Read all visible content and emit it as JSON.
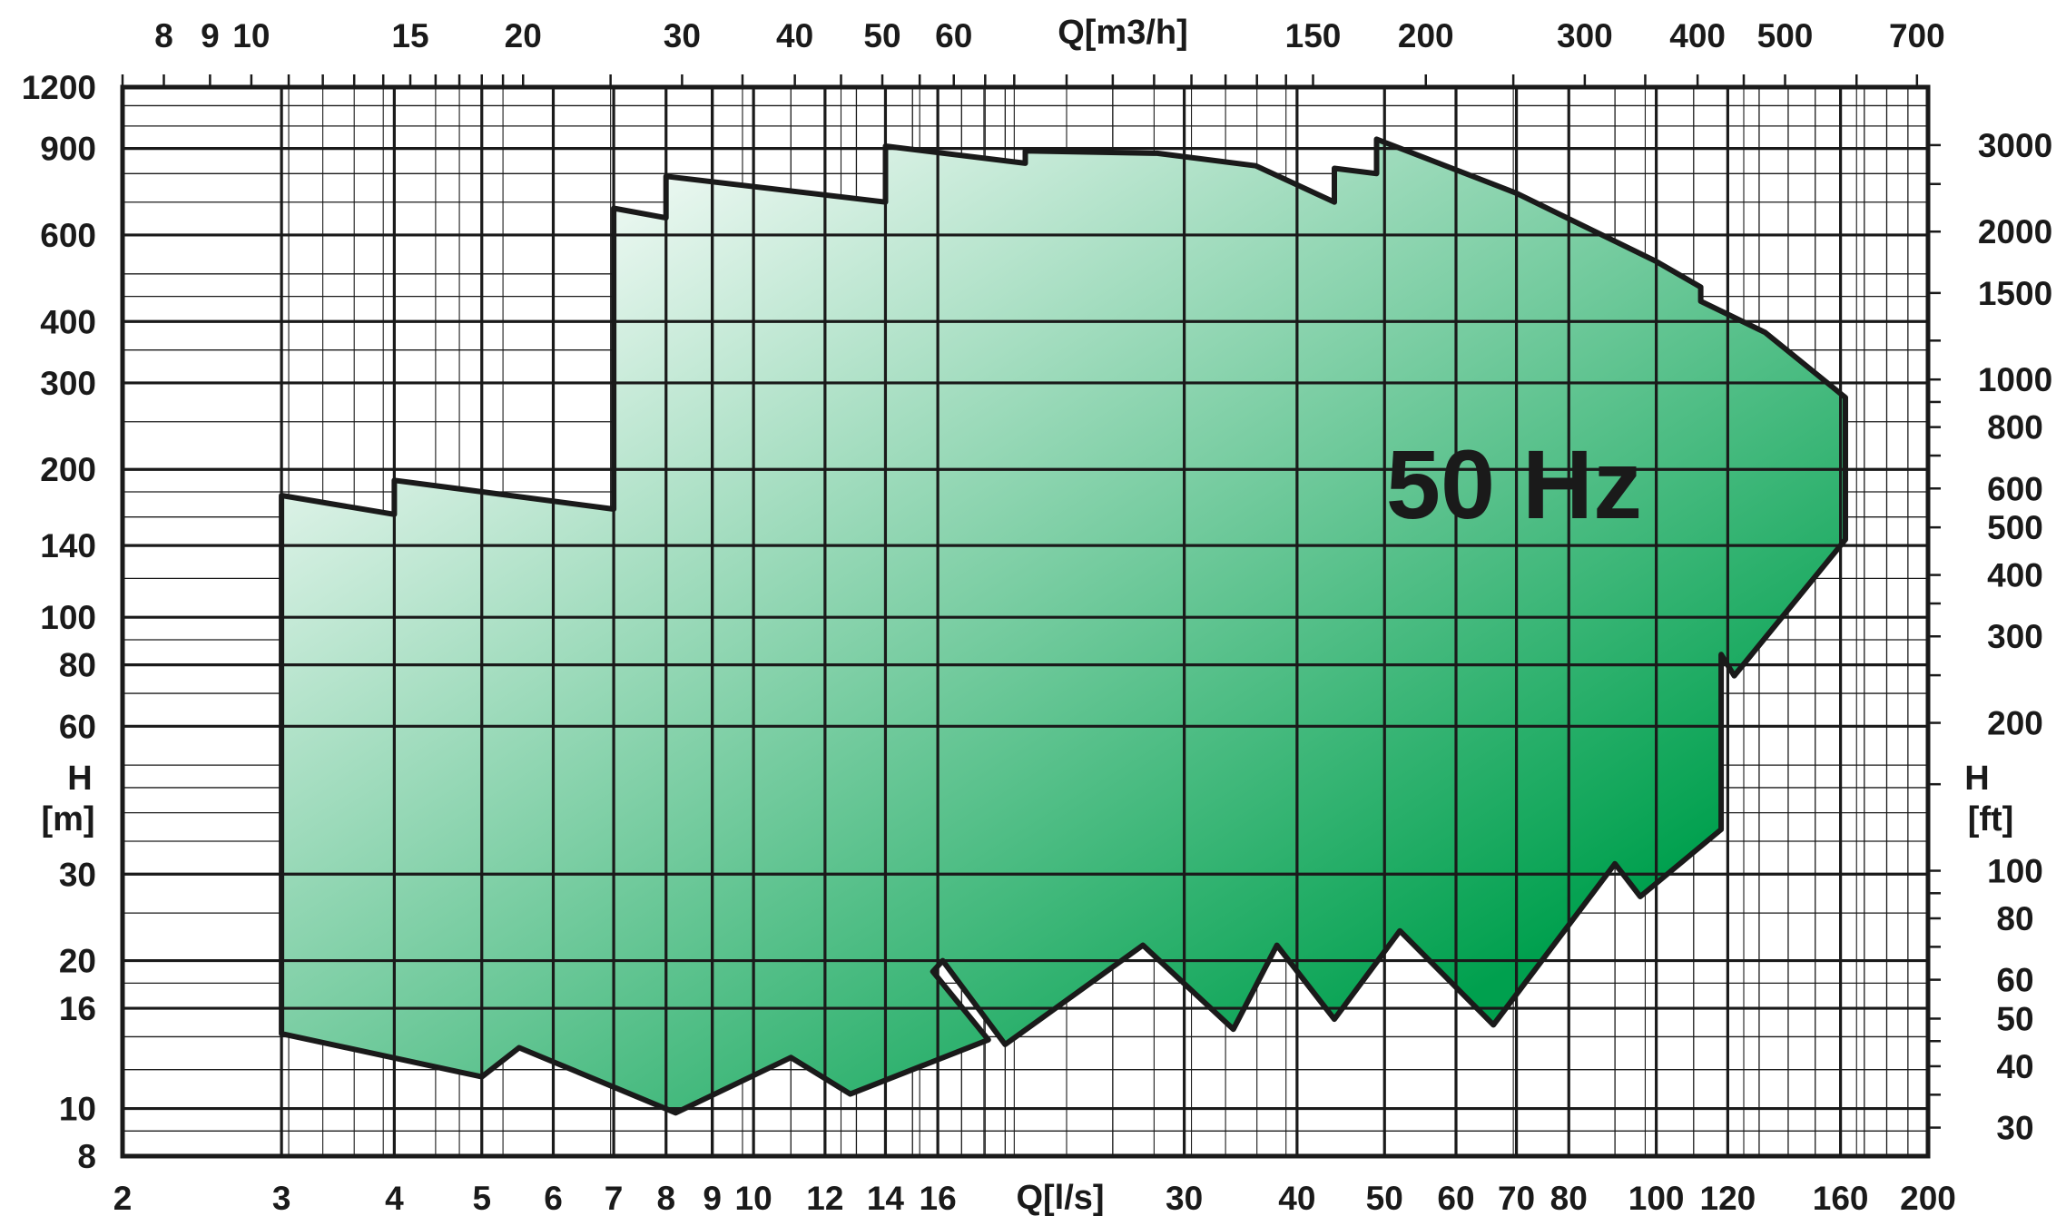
{
  "chart_data": {
    "type": "area",
    "title": "",
    "label": "50 Hz",
    "x_bottom": {
      "label": "Q[l/s]",
      "scale": "log",
      "range": [
        2,
        200
      ],
      "ticks": [
        "2",
        "3",
        "4",
        "5",
        "6",
        "7",
        "8",
        "9",
        "10",
        "12",
        "14",
        "16",
        "30",
        "40",
        "50",
        "60",
        "70",
        "80",
        "100",
        "120",
        "160",
        "200"
      ],
      "minor": [
        9,
        11,
        13,
        15,
        17,
        18,
        19,
        25,
        90,
        110,
        130,
        140,
        150,
        170,
        180,
        190
      ]
    },
    "x_top": {
      "label": "Q[m3/h]",
      "scale": "log",
      "ticks": [
        "8",
        "9",
        "10",
        "15",
        "20",
        "30",
        "40",
        "50",
        "60",
        "150",
        "200",
        "300",
        "400",
        "500",
        "700"
      ],
      "minor": [
        7.2,
        11,
        12,
        13,
        14,
        16,
        17,
        18,
        19,
        25,
        35,
        45,
        55,
        65,
        70,
        80,
        90,
        100,
        110,
        120,
        130,
        140,
        250,
        350,
        450,
        600
      ]
    },
    "y_left": {
      "label": "H",
      "unit": "[m]",
      "scale": "log",
      "range": [
        8,
        1200
      ],
      "ticks": [
        "8",
        "10",
        "16",
        "20",
        "30",
        "60",
        "80",
        "100",
        "140",
        "200",
        "300",
        "400",
        "600",
        "900",
        "1200"
      ],
      "major_lines": [
        10,
        16,
        20,
        30,
        60,
        80,
        100,
        140,
        200,
        300,
        400,
        600,
        900
      ],
      "minor": [
        9,
        12,
        14,
        18,
        25,
        35,
        40,
        45,
        50,
        70,
        90,
        120,
        160,
        180,
        250,
        350,
        450,
        500,
        700,
        800,
        1000,
        1100
      ]
    },
    "y_right": {
      "label": "H",
      "unit": "[ft]",
      "scale": "log",
      "ticks": [
        "30",
        "40",
        "50",
        "60",
        "80",
        "100",
        "200",
        "300",
        "400",
        "500",
        "600",
        "800",
        "1000",
        "1500",
        "2000",
        "3000"
      ],
      "minor": [
        35,
        45,
        70,
        90,
        150,
        250,
        350,
        700,
        900,
        1200,
        2500
      ]
    },
    "envelope": [
      [
        3.0,
        177
      ],
      [
        4.0,
        162
      ],
      [
        4.0,
        190
      ],
      [
        7.0,
        166
      ],
      [
        7.0,
        680
      ],
      [
        8.0,
        650
      ],
      [
        8.0,
        790
      ],
      [
        14,
        700
      ],
      [
        14,
        910
      ],
      [
        20,
        840
      ],
      [
        20,
        890
      ],
      [
        28,
        880
      ],
      [
        36,
        830
      ],
      [
        44,
        700
      ],
      [
        44,
        820
      ],
      [
        49,
        800
      ],
      [
        49,
        940
      ],
      [
        70,
        730
      ],
      [
        100,
        530
      ],
      [
        112,
        470
      ],
      [
        112,
        440
      ],
      [
        132,
        380
      ],
      [
        162,
        280
      ],
      [
        162,
        144
      ],
      [
        122,
        76
      ],
      [
        118,
        84
      ],
      [
        118,
        37
      ],
      [
        96,
        27
      ],
      [
        90,
        31.5
      ],
      [
        66,
        14.8
      ],
      [
        52,
        23
      ],
      [
        44,
        15.2
      ],
      [
        38,
        21.5
      ],
      [
        34,
        14.5
      ],
      [
        27,
        21.5
      ],
      [
        19,
        13.5
      ],
      [
        16.2,
        20
      ],
      [
        15.8,
        19
      ],
      [
        18.2,
        13.8
      ],
      [
        12.8,
        10.7
      ],
      [
        11,
        12.7
      ],
      [
        8.2,
        9.8
      ],
      [
        5.5,
        13.3
      ],
      [
        5.0,
        11.6
      ],
      [
        3.0,
        14.2
      ]
    ]
  },
  "colors": {
    "fill_light": "#ffffff",
    "fill_dark": "#00a04e",
    "outline": "#1a1a1a",
    "grid": "#1a1a1a"
  }
}
